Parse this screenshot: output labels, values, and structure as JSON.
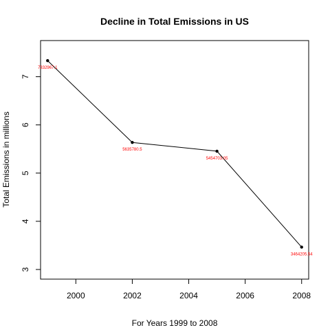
{
  "chart_data": {
    "type": "line",
    "title": "Decline in Total Emissions in US",
    "xlabel": "For Years 1999 to 2008",
    "ylabel": "Total Emissions in millions",
    "x": [
      1999,
      2002,
      2005,
      2008
    ],
    "y": [
      7.332967,
      5.63578,
      5.454703,
      3.464206
    ],
    "point_labels": [
      "7332967.1",
      "5635780.5",
      "5454703.05",
      "3464205.54"
    ],
    "xlim": [
      1998.75,
      2008.25
    ],
    "ylim": [
      2.8,
      7.75
    ],
    "x_ticks": [
      2000,
      2002,
      2004,
      2006,
      2008
    ],
    "x_tick_labels": [
      "2000",
      "2002",
      "2004",
      "2006",
      "2008"
    ],
    "y_ticks": [
      3,
      4,
      5,
      6,
      7
    ],
    "y_tick_labels": [
      "3",
      "4",
      "5",
      "6",
      "7"
    ],
    "grid": false,
    "line_color": "#000000",
    "point_color": "#000000",
    "label_color": "#ff0000"
  }
}
